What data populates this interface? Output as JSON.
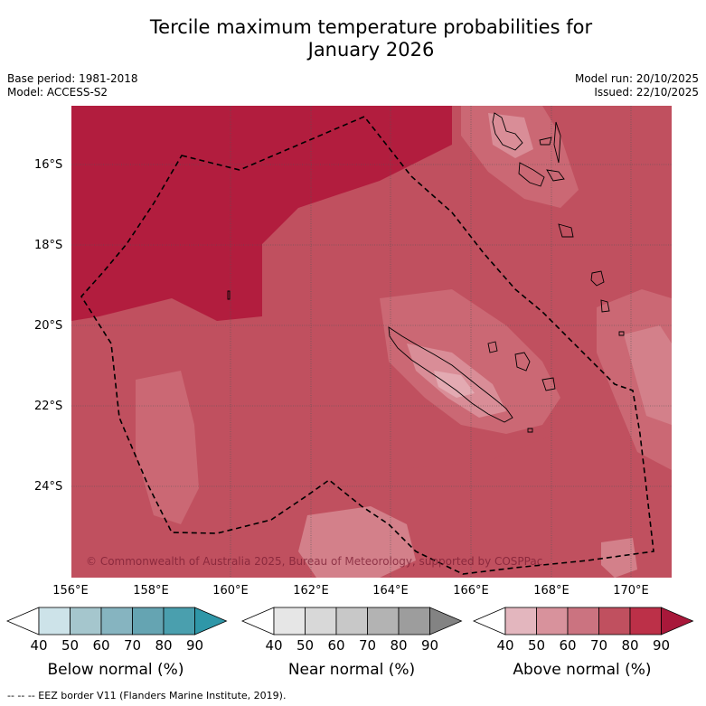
{
  "title": {
    "line1": "Tercile maximum temperature probabilities for",
    "line2": "January 2026"
  },
  "meta": {
    "base_period": "Base period: 1981-2018",
    "model": "Model: ACCESS-S2",
    "model_run": "Model run: 20/10/2025",
    "issued": "Issued: 22/10/2025"
  },
  "map": {
    "latitude_labels": [
      "16°S",
      "18°S",
      "20°S",
      "22°S",
      "24°S"
    ],
    "longitude_labels": [
      "156°E",
      "158°E",
      "160°E",
      "162°E",
      "164°E",
      "166°E",
      "168°E",
      "170°E"
    ],
    "copyright": "© Commonwealth of Australia 2025, Bureau of Meteorology, supported by COSPPac",
    "dominant_category": "Above normal",
    "eez_border_style": "dashed black line"
  },
  "colorbars": [
    {
      "title": "Below normal (%)",
      "ticks": [
        "40",
        "50",
        "60",
        "70",
        "80",
        "90"
      ],
      "colors": [
        "#ffffff",
        "#cde3e9",
        "#a5c6cd",
        "#86b4c0",
        "#65a4b2",
        "#4a9fae",
        "#2f97a8"
      ]
    },
    {
      "title": "Near normal (%)",
      "ticks": [
        "40",
        "50",
        "60",
        "70",
        "80",
        "90"
      ],
      "colors": [
        "#ffffff",
        "#e6e6e6",
        "#d8d8d8",
        "#c8c8c8",
        "#b3b3b3",
        "#9d9d9d",
        "#838383"
      ]
    },
    {
      "title": "Above normal (%)",
      "ticks": [
        "40",
        "50",
        "60",
        "70",
        "80",
        "90"
      ],
      "colors": [
        "#ffffff",
        "#e3b6be",
        "#d8929c",
        "#cb7380",
        "#c0505f",
        "#bc3048",
        "#a8183a"
      ]
    }
  ],
  "footnote": "-- -- -- EEZ border V11 (Flanders Marine Institute, 2019)."
}
